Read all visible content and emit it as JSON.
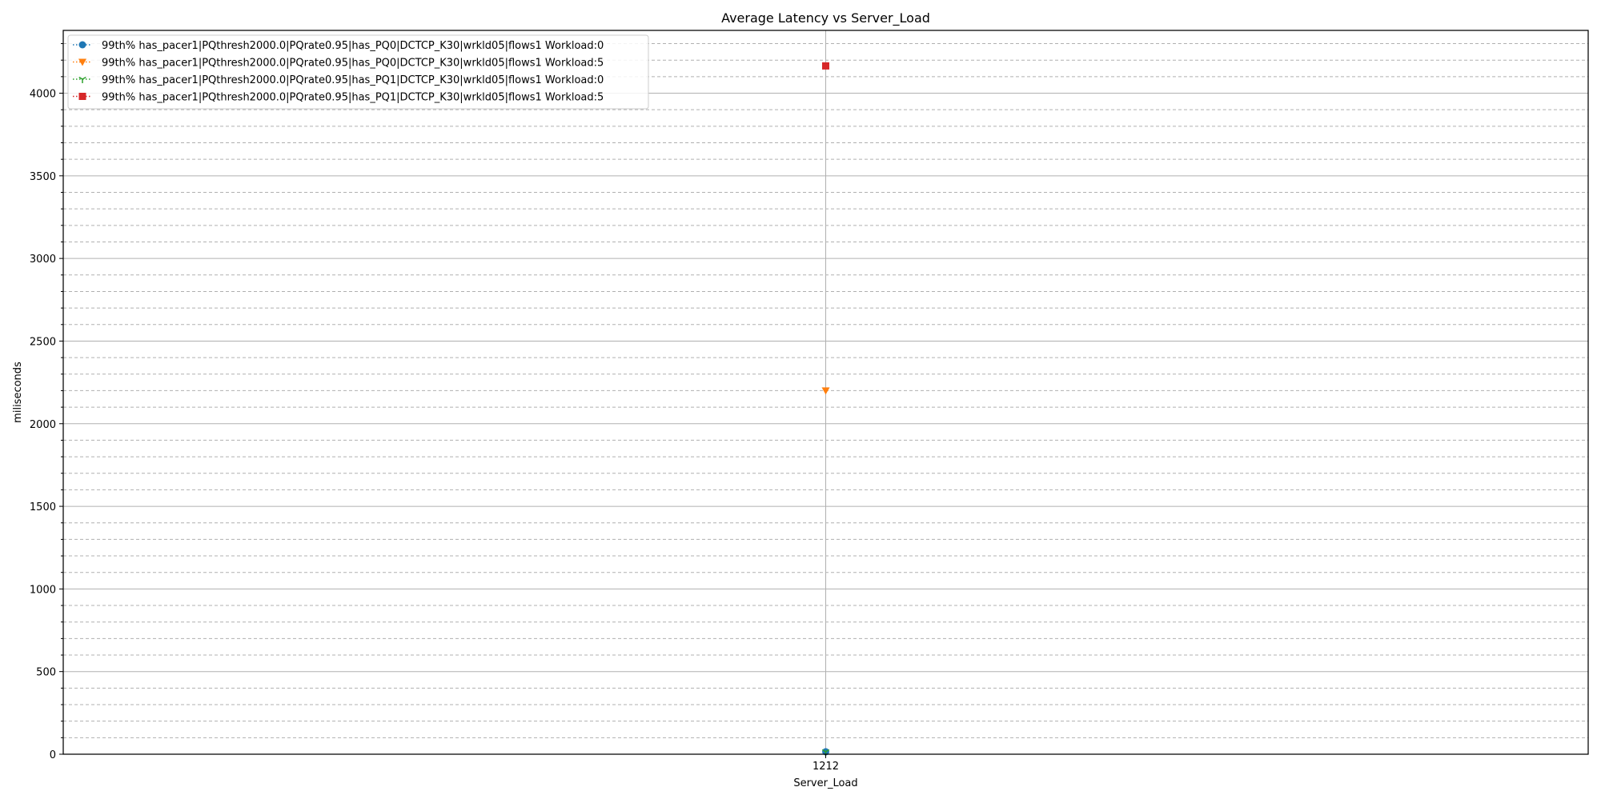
{
  "chart_data": {
    "type": "line",
    "title": "Average Latency vs Server_Load",
    "xlabel": "Server_Load",
    "ylabel": "miliseconds",
    "x_categories": [
      "1212"
    ],
    "ylim": [
      0,
      4380
    ],
    "y_ticks": [
      0,
      500,
      1000,
      1500,
      2000,
      2500,
      3000,
      3500,
      4000
    ],
    "grid": {
      "major": true,
      "minor": true,
      "minor_step": 100
    },
    "legend_position": "top-left",
    "series": [
      {
        "name": "99th% has_pacer1|PQthresh2000.0|PQrate0.95|has_PQ0|DCTCP_K30|wrkld05|flows1 Workload:0",
        "color": "#1f77b4",
        "marker": "circle",
        "values": [
          15
        ]
      },
      {
        "name": "99th% has_pacer1|PQthresh2000.0|PQrate0.95|has_PQ0|DCTCP_K30|wrkld05|flows1 Workload:5",
        "color": "#ff7f0e",
        "marker": "triangle-down",
        "values": [
          2200
        ]
      },
      {
        "name": "99th% has_pacer1|PQthresh2000.0|PQrate0.95|has_PQ1|DCTCP_K30|wrkld05|flows1 Workload:0",
        "color": "#2ca02c",
        "marker": "tri-down",
        "values": [
          15
        ]
      },
      {
        "name": "99th% has_pacer1|PQthresh2000.0|PQrate0.95|has_PQ1|DCTCP_K30|wrkld05|flows1 Workload:5",
        "color": "#d62728",
        "marker": "square",
        "values": [
          4165
        ]
      }
    ]
  }
}
